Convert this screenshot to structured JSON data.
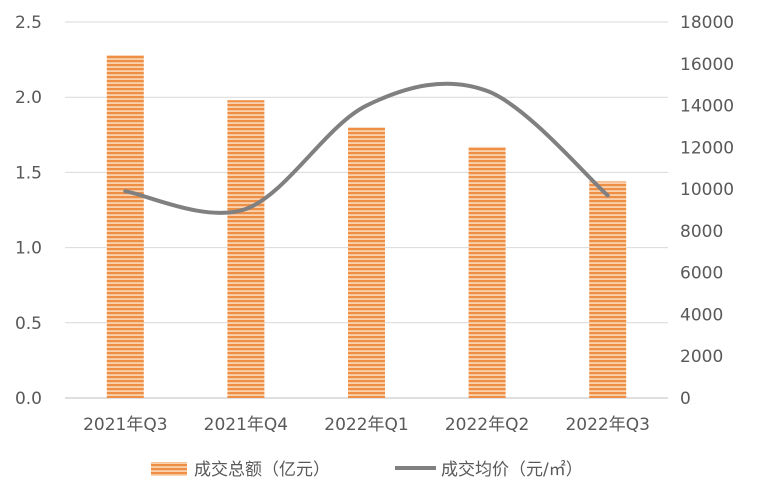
{
  "chart_data": {
    "type": "bar",
    "categories": [
      "2021年Q3",
      "2021年Q4",
      "2022年Q1",
      "2022年Q2",
      "2022年Q3"
    ],
    "series": [
      {
        "name": "成交总额（亿元）",
        "type": "bar",
        "axis": "left",
        "values": [
          2.28,
          1.98,
          1.8,
          1.67,
          1.44
        ],
        "color": "#F4A460"
      },
      {
        "name": "成交均价（元/㎡）",
        "type": "line",
        "axis": "right",
        "values": [
          9900,
          9050,
          14000,
          14700,
          9700
        ],
        "color": "#808080"
      }
    ],
    "left_axis": {
      "ticks": [
        "0.0",
        "0.5",
        "1.0",
        "1.5",
        "2.0",
        "2.5"
      ],
      "min": 0,
      "max": 2.5
    },
    "right_axis": {
      "ticks": [
        "0",
        "2000",
        "4000",
        "6000",
        "8000",
        "10000",
        "12000",
        "14000",
        "16000",
        "18000"
      ],
      "min": 0,
      "max": 18000
    },
    "grid": true,
    "legend": "bottom"
  }
}
